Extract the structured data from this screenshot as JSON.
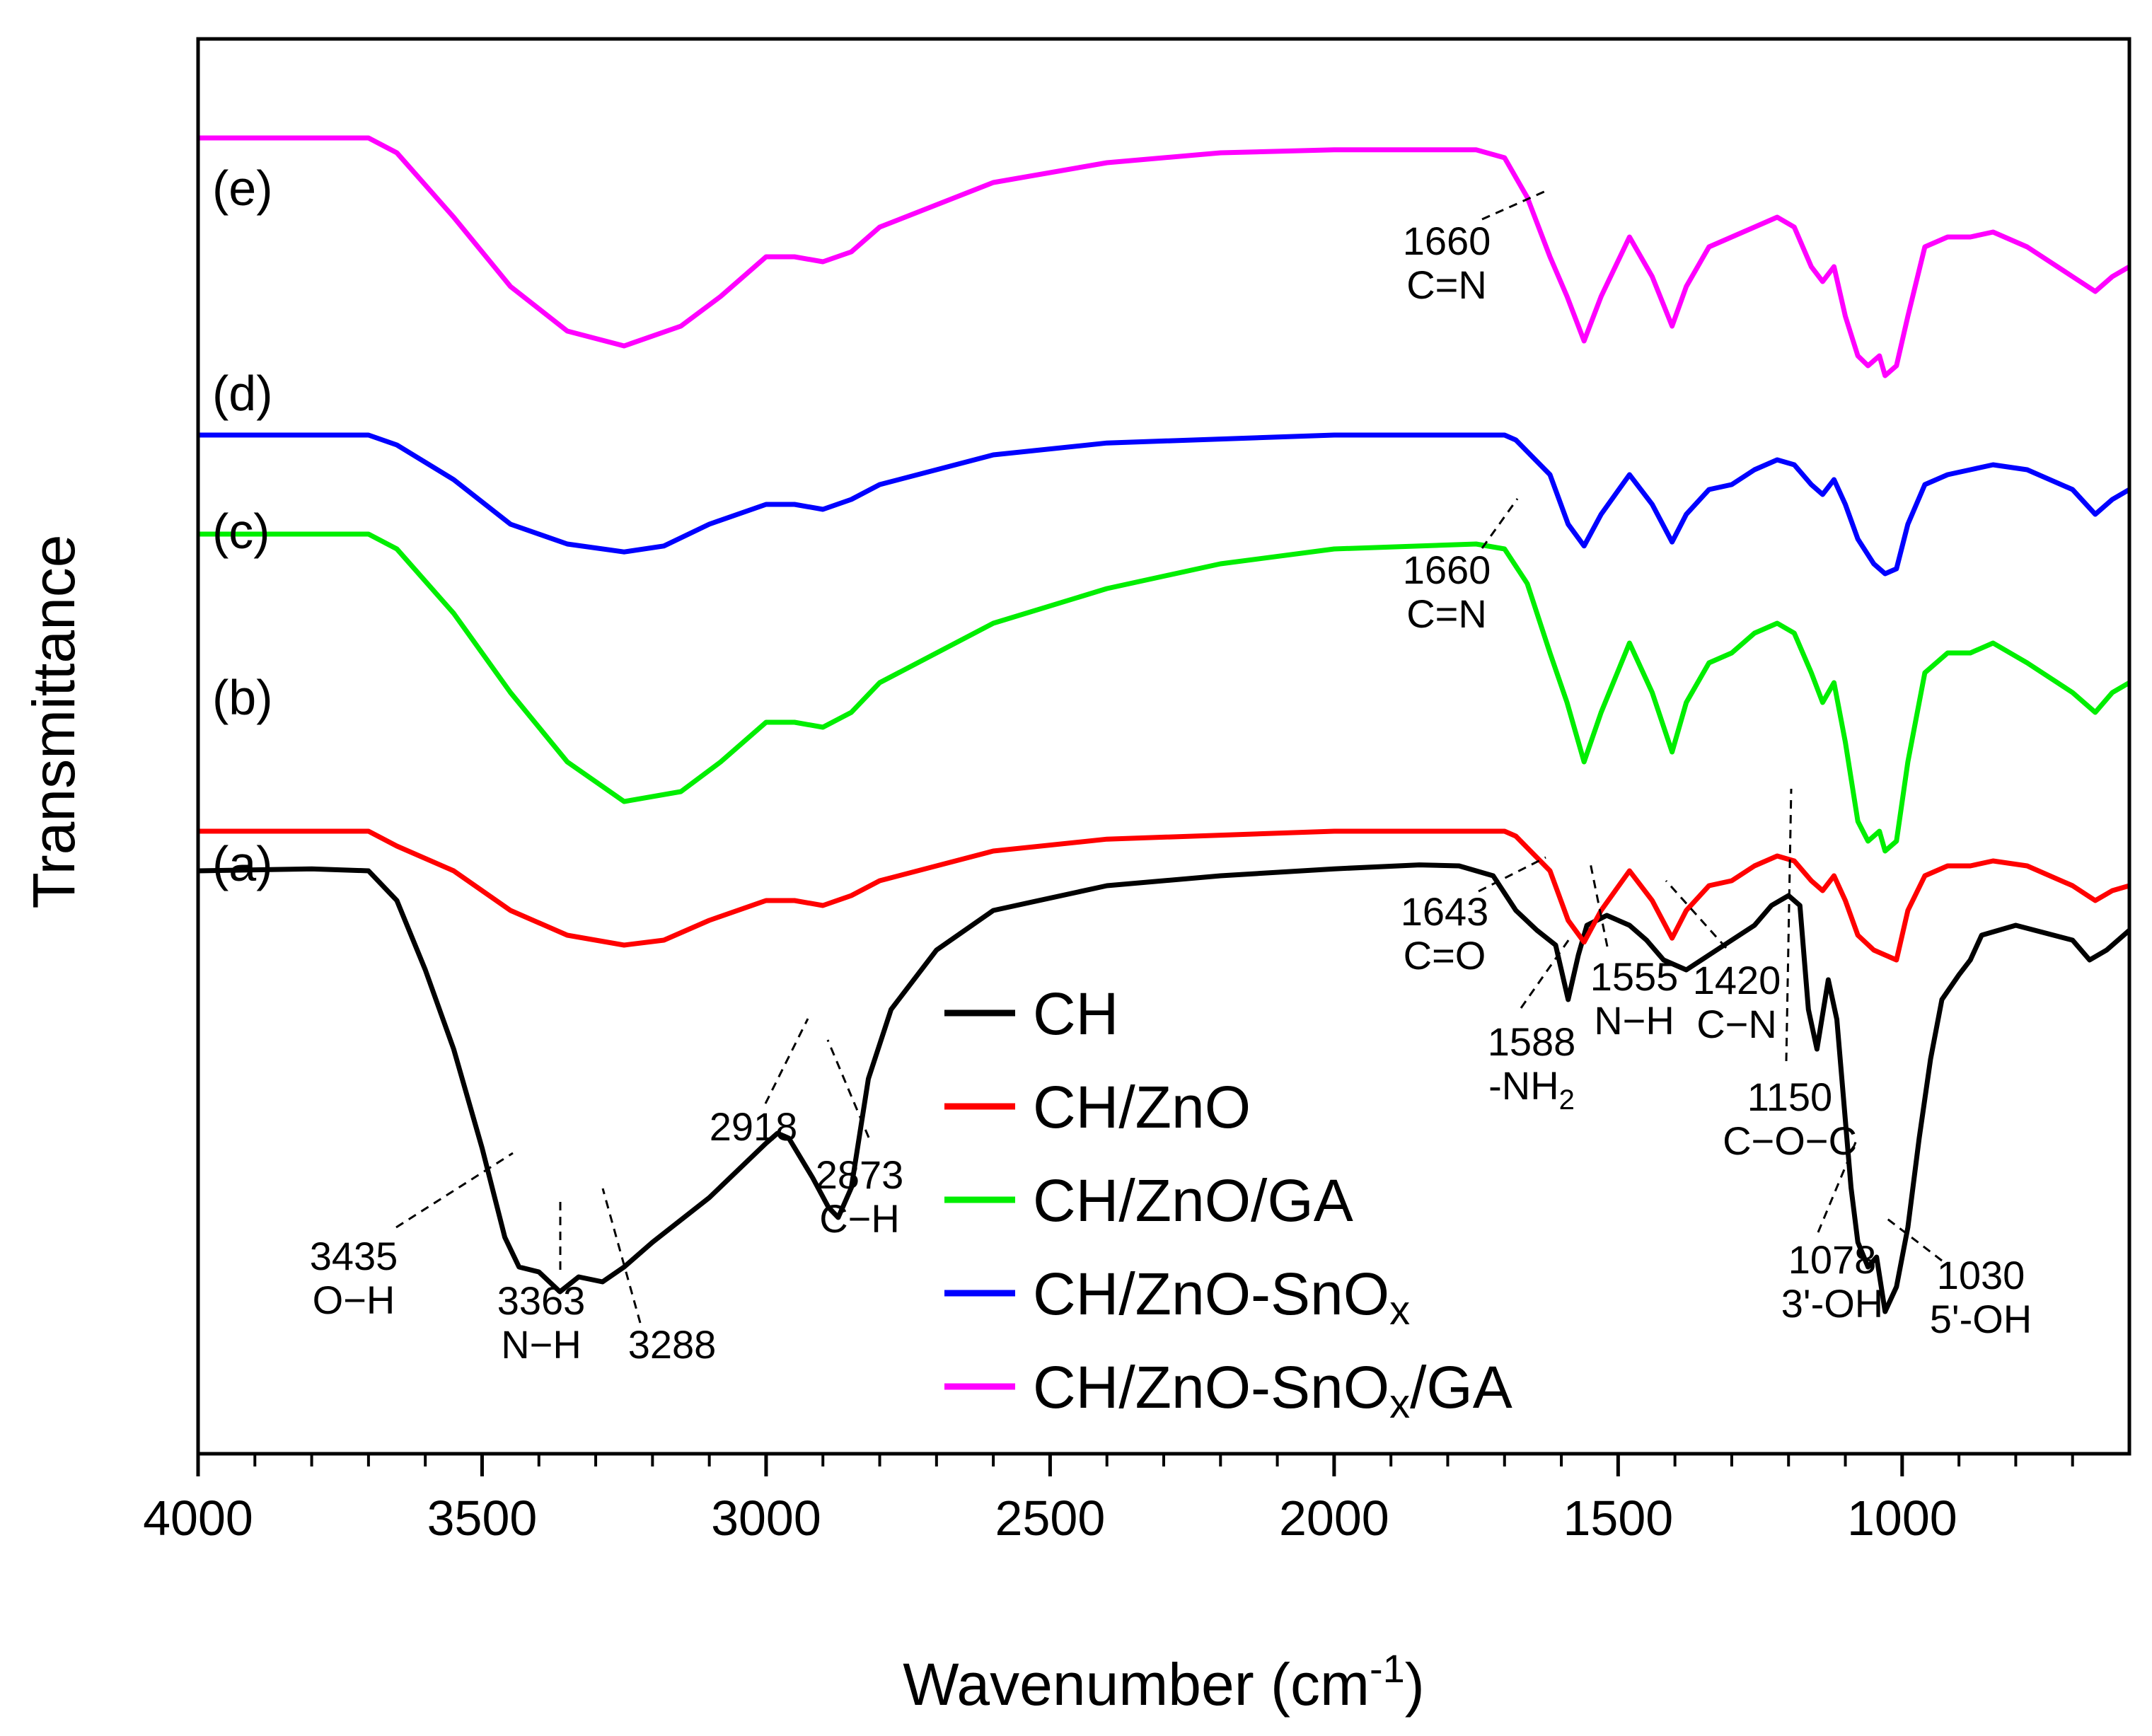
{
  "chart_data": {
    "type": "line",
    "title": "",
    "xlabel": "Wavenumber (cm",
    "xlabel_sup": "-1",
    "xlabel_close": ")",
    "ylabel": "Transmittance",
    "xlim": [
      4000,
      600
    ],
    "xticks": [
      4000,
      3500,
      3000,
      2500,
      2000,
      1500,
      1000
    ],
    "xtick_labels": [
      "4000",
      "3500",
      "3000",
      "2500",
      "2000",
      "1500",
      "1000"
    ],
    "y_ticks_visible": false,
    "legend": {
      "position": "lower-center",
      "entries": [
        {
          "label": "CH",
          "color": "#000000"
        },
        {
          "label": "CH/ZnO",
          "color": "#ff0000"
        },
        {
          "label": "CH/ZnO/GA",
          "color": "#00ee00"
        },
        {
          "label_main": "CH/ZnO-SnO",
          "label_sub": "x",
          "label_tail": "",
          "color": "#0000ff"
        },
        {
          "label_main": "CH/ZnO-SnO",
          "label_sub": "x",
          "label_tail": "/GA",
          "color": "#ff00ff"
        }
      ]
    },
    "series": [
      {
        "name": "CH",
        "curve_label": "(a)",
        "color": "#000000",
        "points": [
          [
            4000,
            9.6
          ],
          [
            3800,
            9.62
          ],
          [
            3700,
            9.6
          ],
          [
            3650,
            9.3
          ],
          [
            3600,
            8.6
          ],
          [
            3550,
            7.8
          ],
          [
            3500,
            6.8
          ],
          [
            3460,
            5.9
          ],
          [
            3435,
            5.6
          ],
          [
            3400,
            5.55
          ],
          [
            3363,
            5.35
          ],
          [
            3330,
            5.5
          ],
          [
            3288,
            5.45
          ],
          [
            3250,
            5.6
          ],
          [
            3200,
            5.85
          ],
          [
            3100,
            6.3
          ],
          [
            3000,
            6.85
          ],
          [
            2980,
            6.95
          ],
          [
            2960,
            6.9
          ],
          [
            2918,
            6.5
          ],
          [
            2890,
            6.2
          ],
          [
            2873,
            6.1
          ],
          [
            2850,
            6.4
          ],
          [
            2820,
            7.5
          ],
          [
            2780,
            8.2
          ],
          [
            2700,
            8.8
          ],
          [
            2600,
            9.2
          ],
          [
            2400,
            9.45
          ],
          [
            2200,
            9.55
          ],
          [
            2000,
            9.62
          ],
          [
            1850,
            9.66
          ],
          [
            1780,
            9.65
          ],
          [
            1720,
            9.55
          ],
          [
            1680,
            9.2
          ],
          [
            1643,
            9.0
          ],
          [
            1610,
            8.85
          ],
          [
            1588,
            8.3
          ],
          [
            1570,
            8.75
          ],
          [
            1555,
            9.05
          ],
          [
            1520,
            9.15
          ],
          [
            1480,
            9.05
          ],
          [
            1450,
            8.9
          ],
          [
            1420,
            8.7
          ],
          [
            1400,
            8.65
          ],
          [
            1380,
            8.6
          ],
          [
            1340,
            8.75
          ],
          [
            1300,
            8.9
          ],
          [
            1260,
            9.05
          ],
          [
            1230,
            9.25
          ],
          [
            1200,
            9.35
          ],
          [
            1180,
            9.25
          ],
          [
            1165,
            8.2
          ],
          [
            1150,
            7.8
          ],
          [
            1130,
            8.5
          ],
          [
            1115,
            8.1
          ],
          [
            1090,
            6.4
          ],
          [
            1078,
            5.85
          ],
          [
            1060,
            5.6
          ],
          [
            1045,
            5.7
          ],
          [
            1030,
            5.15
          ],
          [
            1010,
            5.4
          ],
          [
            990,
            6.0
          ],
          [
            970,
            6.9
          ],
          [
            950,
            7.7
          ],
          [
            930,
            8.3
          ],
          [
            900,
            8.55
          ],
          [
            880,
            8.7
          ],
          [
            860,
            8.95
          ],
          [
            800,
            9.05
          ],
          [
            700,
            8.9
          ],
          [
            670,
            8.7
          ],
          [
            640,
            8.8
          ],
          [
            610,
            8.95
          ],
          [
            600,
            9.0
          ]
        ]
      },
      {
        "name": "CH/ZnO",
        "curve_label": "(b)",
        "color": "#ff0000",
        "points": [
          [
            4000,
            10.0
          ],
          [
            3700,
            10.0
          ],
          [
            3650,
            9.85
          ],
          [
            3550,
            9.6
          ],
          [
            3450,
            9.2
          ],
          [
            3350,
            8.95
          ],
          [
            3250,
            8.85
          ],
          [
            3180,
            8.9
          ],
          [
            3100,
            9.1
          ],
          [
            3000,
            9.3
          ],
          [
            2950,
            9.3
          ],
          [
            2900,
            9.25
          ],
          [
            2850,
            9.35
          ],
          [
            2800,
            9.5
          ],
          [
            2600,
            9.8
          ],
          [
            2400,
            9.92
          ],
          [
            2000,
            10.0
          ],
          [
            1700,
            10.0
          ],
          [
            1680,
            9.95
          ],
          [
            1620,
            9.6
          ],
          [
            1588,
            9.1
          ],
          [
            1560,
            8.88
          ],
          [
            1530,
            9.2
          ],
          [
            1480,
            9.6
          ],
          [
            1440,
            9.3
          ],
          [
            1405,
            8.92
          ],
          [
            1380,
            9.2
          ],
          [
            1340,
            9.45
          ],
          [
            1300,
            9.5
          ],
          [
            1260,
            9.65
          ],
          [
            1220,
            9.75
          ],
          [
            1190,
            9.7
          ],
          [
            1160,
            9.5
          ],
          [
            1140,
            9.4
          ],
          [
            1120,
            9.55
          ],
          [
            1100,
            9.3
          ],
          [
            1078,
            8.95
          ],
          [
            1050,
            8.8
          ],
          [
            1030,
            8.75
          ],
          [
            1010,
            8.7
          ],
          [
            990,
            9.2
          ],
          [
            960,
            9.55
          ],
          [
            920,
            9.65
          ],
          [
            880,
            9.65
          ],
          [
            840,
            9.7
          ],
          [
            780,
            9.65
          ],
          [
            700,
            9.45
          ],
          [
            660,
            9.3
          ],
          [
            630,
            9.4
          ],
          [
            600,
            9.45
          ]
        ]
      },
      {
        "name": "CH/ZnO/GA",
        "curve_label": "(c)",
        "color": "#00ee00",
        "points": [
          [
            4000,
            13.0
          ],
          [
            3700,
            13.0
          ],
          [
            3650,
            12.85
          ],
          [
            3550,
            12.2
          ],
          [
            3450,
            11.4
          ],
          [
            3350,
            10.7
          ],
          [
            3250,
            10.3
          ],
          [
            3150,
            10.4
          ],
          [
            3080,
            10.7
          ],
          [
            3000,
            11.1
          ],
          [
            2950,
            11.1
          ],
          [
            2900,
            11.05
          ],
          [
            2850,
            11.2
          ],
          [
            2800,
            11.5
          ],
          [
            2600,
            12.1
          ],
          [
            2400,
            12.45
          ],
          [
            2200,
            12.7
          ],
          [
            2000,
            12.85
          ],
          [
            1750,
            12.9
          ],
          [
            1700,
            12.85
          ],
          [
            1660,
            12.5
          ],
          [
            1620,
            11.8
          ],
          [
            1590,
            11.3
          ],
          [
            1560,
            10.7
          ],
          [
            1530,
            11.2
          ],
          [
            1480,
            11.9
          ],
          [
            1440,
            11.4
          ],
          [
            1405,
            10.8
          ],
          [
            1380,
            11.3
          ],
          [
            1340,
            11.7
          ],
          [
            1300,
            11.8
          ],
          [
            1260,
            12.0
          ],
          [
            1220,
            12.1
          ],
          [
            1190,
            12.0
          ],
          [
            1160,
            11.6
          ],
          [
            1140,
            11.3
          ],
          [
            1120,
            11.5
          ],
          [
            1100,
            10.9
          ],
          [
            1078,
            10.1
          ],
          [
            1060,
            9.9
          ],
          [
            1040,
            10.0
          ],
          [
            1030,
            9.8
          ],
          [
            1010,
            9.9
          ],
          [
            990,
            10.7
          ],
          [
            960,
            11.6
          ],
          [
            920,
            11.8
          ],
          [
            880,
            11.8
          ],
          [
            840,
            11.9
          ],
          [
            780,
            11.7
          ],
          [
            700,
            11.4
          ],
          [
            660,
            11.2
          ],
          [
            630,
            11.4
          ],
          [
            600,
            11.5
          ]
        ]
      },
      {
        "name": "CH/ZnO-SnOx",
        "curve_label": "(d)",
        "color": "#0000ff",
        "points": [
          [
            4000,
            14.0
          ],
          [
            3700,
            14.0
          ],
          [
            3650,
            13.9
          ],
          [
            3550,
            13.55
          ],
          [
            3450,
            13.1
          ],
          [
            3350,
            12.9
          ],
          [
            3250,
            12.82
          ],
          [
            3180,
            12.88
          ],
          [
            3100,
            13.1
          ],
          [
            3000,
            13.3
          ],
          [
            2950,
            13.3
          ],
          [
            2900,
            13.25
          ],
          [
            2850,
            13.35
          ],
          [
            2800,
            13.5
          ],
          [
            2600,
            13.8
          ],
          [
            2400,
            13.92
          ],
          [
            2000,
            14.0
          ],
          [
            1700,
            14.0
          ],
          [
            1680,
            13.95
          ],
          [
            1620,
            13.6
          ],
          [
            1588,
            13.1
          ],
          [
            1560,
            12.88
          ],
          [
            1530,
            13.2
          ],
          [
            1480,
            13.6
          ],
          [
            1440,
            13.3
          ],
          [
            1405,
            12.92
          ],
          [
            1380,
            13.2
          ],
          [
            1340,
            13.45
          ],
          [
            1300,
            13.5
          ],
          [
            1260,
            13.65
          ],
          [
            1220,
            13.75
          ],
          [
            1190,
            13.7
          ],
          [
            1160,
            13.5
          ],
          [
            1140,
            13.4
          ],
          [
            1120,
            13.55
          ],
          [
            1100,
            13.3
          ],
          [
            1078,
            12.95
          ],
          [
            1050,
            12.7
          ],
          [
            1030,
            12.6
          ],
          [
            1010,
            12.65
          ],
          [
            990,
            13.1
          ],
          [
            960,
            13.5
          ],
          [
            920,
            13.6
          ],
          [
            880,
            13.65
          ],
          [
            840,
            13.7
          ],
          [
            780,
            13.65
          ],
          [
            700,
            13.45
          ],
          [
            660,
            13.2
          ],
          [
            630,
            13.35
          ],
          [
            600,
            13.45
          ]
        ]
      },
      {
        "name": "CH/ZnO-SnOx/GA",
        "curve_label": "(e)",
        "color": "#ff00ff",
        "points": [
          [
            4000,
            17.0
          ],
          [
            3700,
            17.0
          ],
          [
            3650,
            16.85
          ],
          [
            3550,
            16.2
          ],
          [
            3450,
            15.5
          ],
          [
            3350,
            15.05
          ],
          [
            3250,
            14.9
          ],
          [
            3150,
            15.1
          ],
          [
            3080,
            15.4
          ],
          [
            3000,
            15.8
          ],
          [
            2950,
            15.8
          ],
          [
            2900,
            15.75
          ],
          [
            2850,
            15.85
          ],
          [
            2800,
            16.1
          ],
          [
            2600,
            16.55
          ],
          [
            2400,
            16.75
          ],
          [
            2200,
            16.85
          ],
          [
            2000,
            16.88
          ],
          [
            1750,
            16.88
          ],
          [
            1700,
            16.8
          ],
          [
            1660,
            16.4
          ],
          [
            1620,
            15.8
          ],
          [
            1590,
            15.4
          ],
          [
            1560,
            14.95
          ],
          [
            1530,
            15.4
          ],
          [
            1480,
            16.0
          ],
          [
            1440,
            15.6
          ],
          [
            1405,
            15.1
          ],
          [
            1380,
            15.5
          ],
          [
            1340,
            15.9
          ],
          [
            1300,
            16.0
          ],
          [
            1260,
            16.1
          ],
          [
            1220,
            16.2
          ],
          [
            1190,
            16.1
          ],
          [
            1160,
            15.7
          ],
          [
            1140,
            15.55
          ],
          [
            1120,
            15.7
          ],
          [
            1100,
            15.2
          ],
          [
            1078,
            14.8
          ],
          [
            1060,
            14.7
          ],
          [
            1040,
            14.8
          ],
          [
            1030,
            14.6
          ],
          [
            1010,
            14.7
          ],
          [
            990,
            15.2
          ],
          [
            960,
            15.9
          ],
          [
            920,
            16.0
          ],
          [
            880,
            16.0
          ],
          [
            840,
            16.05
          ],
          [
            780,
            15.9
          ],
          [
            700,
            15.6
          ],
          [
            660,
            15.45
          ],
          [
            630,
            15.6
          ],
          [
            600,
            15.7
          ]
        ]
      }
    ],
    "curve_labels": [
      "(a)",
      "(b)",
      "(c)",
      "(d)",
      "(e)"
    ],
    "annotations": [
      {
        "lines": [
          "3435",
          "O−H"
        ]
      },
      {
        "lines": [
          "3363",
          "N−H"
        ]
      },
      {
        "lines": [
          "3288"
        ]
      },
      {
        "lines": [
          "2918"
        ]
      },
      {
        "lines": [
          "2873",
          "C−H"
        ]
      },
      {
        "lines": [
          "1643",
          "C=O"
        ]
      },
      {
        "lines": [
          "1588",
          "-NH"
        ],
        "sub": "2"
      },
      {
        "lines": [
          "1555",
          "N−H"
        ]
      },
      {
        "lines": [
          "1420",
          "C−N"
        ]
      },
      {
        "lines": [
          "1150",
          "C−O−C"
        ]
      },
      {
        "lines": [
          "1078",
          "3'-OH"
        ]
      },
      {
        "lines": [
          "1030",
          "5'-OH"
        ]
      },
      {
        "lines": [
          "1660",
          "C=N"
        ]
      },
      {
        "lines": [
          "1660",
          "C=N"
        ]
      }
    ]
  }
}
